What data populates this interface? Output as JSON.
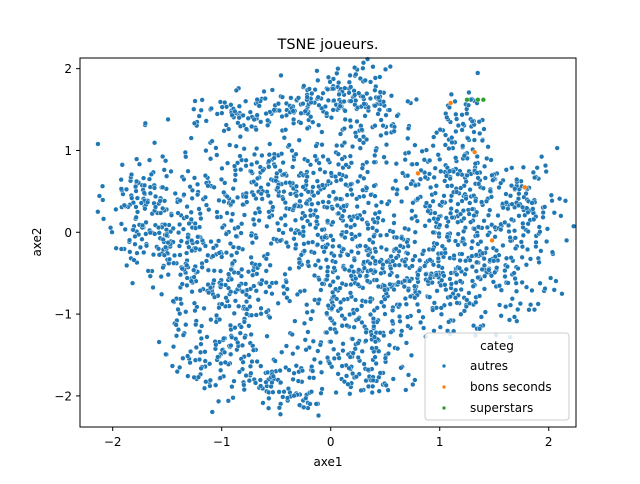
{
  "chart_data": {
    "type": "scatter",
    "title": "TSNE joueurs.",
    "xlabel": "axe1",
    "ylabel": "axe2",
    "xlim": [
      -2.3,
      2.25
    ],
    "ylim": [
      -2.38,
      2.13
    ],
    "xticks": [
      -2,
      -1,
      0,
      1,
      2
    ],
    "yticks": [
      -2,
      -1,
      0,
      1,
      2
    ],
    "xtick_labels": [
      "−2",
      "−1",
      "0",
      "1",
      "2"
    ],
    "ytick_labels": [
      "−2",
      "−1",
      "0",
      "1",
      "2"
    ],
    "grid": false,
    "legend": {
      "title": "categ",
      "placement": "bottom-right",
      "entries": [
        "autres",
        "bons seconds",
        "superstars"
      ]
    },
    "series": [
      {
        "name": "autres",
        "color": "#1f77b4",
        "clusters": [
          {
            "cx": -1.7,
            "cy": 0.3,
            "sx": 0.18,
            "sy": 0.4,
            "n": 150
          },
          {
            "cx": -1.25,
            "cy": -0.2,
            "sx": 0.22,
            "sy": 0.5,
            "n": 170
          },
          {
            "cx": -1.05,
            "cy": -1.35,
            "sx": 0.25,
            "sy": 0.25,
            "n": 80
          },
          {
            "cx": -0.85,
            "cy": -0.6,
            "sx": 0.25,
            "sy": 0.3,
            "n": 110
          },
          {
            "cx": -0.6,
            "cy": 0.55,
            "sx": 0.35,
            "sy": 0.3,
            "n": 160
          },
          {
            "cx": -0.7,
            "cy": -1.7,
            "sx": 0.25,
            "sy": 0.2,
            "n": 70
          },
          {
            "cx": -0.35,
            "cy": -1.95,
            "sx": 0.2,
            "sy": 0.15,
            "n": 50
          },
          {
            "cx": -0.8,
            "cy": 1.45,
            "sx": 0.3,
            "sy": 0.12,
            "n": 80
          },
          {
            "cx": -0.2,
            "cy": 1.55,
            "sx": 0.2,
            "sy": 0.15,
            "n": 60
          },
          {
            "cx": 0.15,
            "cy": 1.7,
            "sx": 0.2,
            "sy": 0.18,
            "n": 80
          },
          {
            "cx": 0.4,
            "cy": 1.4,
            "sx": 0.15,
            "sy": 0.25,
            "n": 60
          },
          {
            "cx": 0.05,
            "cy": 0.7,
            "sx": 0.35,
            "sy": 0.35,
            "n": 160
          },
          {
            "cx": 0.0,
            "cy": -0.2,
            "sx": 0.4,
            "sy": 0.4,
            "n": 220
          },
          {
            "cx": 0.5,
            "cy": -0.6,
            "sx": 0.3,
            "sy": 0.35,
            "n": 160
          },
          {
            "cx": 0.15,
            "cy": -1.3,
            "sx": 0.3,
            "sy": 0.3,
            "n": 130
          },
          {
            "cx": 0.4,
            "cy": -1.8,
            "sx": 0.18,
            "sy": 0.15,
            "n": 40
          },
          {
            "cx": 1.1,
            "cy": 0.5,
            "sx": 0.25,
            "sy": 0.35,
            "n": 130
          },
          {
            "cx": 1.5,
            "cy": 0.25,
            "sx": 0.25,
            "sy": 0.3,
            "n": 120
          },
          {
            "cx": 1.2,
            "cy": 1.3,
            "sx": 0.15,
            "sy": 0.25,
            "n": 60
          },
          {
            "cx": 1.0,
            "cy": -0.5,
            "sx": 0.3,
            "sy": 0.35,
            "n": 160
          },
          {
            "cx": 1.55,
            "cy": -0.6,
            "sx": 0.25,
            "sy": 0.3,
            "n": 110
          },
          {
            "cx": 1.85,
            "cy": 0.2,
            "sx": 0.12,
            "sy": 0.3,
            "n": 50
          }
        ]
      },
      {
        "name": "bons seconds",
        "color": "#ff7f0e",
        "points": [
          [
            1.1,
            1.58
          ],
          [
            1.32,
            0.98
          ],
          [
            0.8,
            0.72
          ],
          [
            1.48,
            -0.1
          ],
          [
            1.78,
            0.55
          ]
        ]
      },
      {
        "name": "superstars",
        "color": "#2ca02c",
        "points": [
          [
            1.25,
            1.62
          ],
          [
            1.35,
            1.62
          ],
          [
            1.4,
            1.62
          ]
        ]
      }
    ]
  }
}
